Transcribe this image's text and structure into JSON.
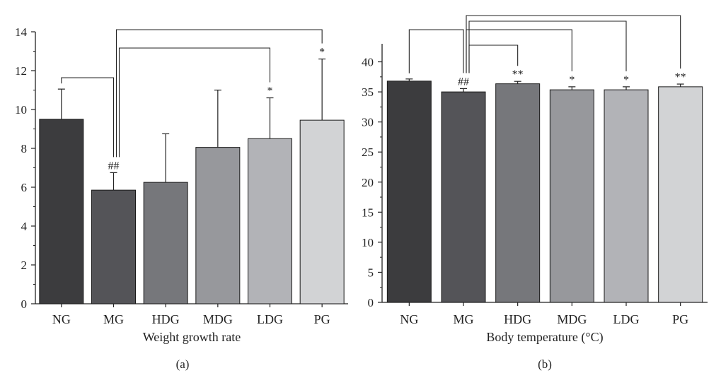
{
  "chart_data": [
    {
      "type": "bar",
      "panel_label": "(a)",
      "xlabel": "Weight growth rate",
      "categories": [
        "NG",
        "MG",
        "HDG",
        "MDG",
        "LDG",
        "PG"
      ],
      "values": [
        9.5,
        5.85,
        6.25,
        8.05,
        8.5,
        9.45
      ],
      "errors": [
        1.55,
        0.9,
        2.5,
        2.95,
        2.1,
        3.15
      ],
      "ylim": [
        0,
        14
      ],
      "yticks": [
        "0",
        "2",
        "4",
        "6",
        "8",
        "10",
        "12",
        "14"
      ],
      "significance": [
        "",
        "##",
        "",
        "",
        "*",
        "*"
      ],
      "comparisons": [
        {
          "from": "NG",
          "to": "MG"
        },
        {
          "from": "MG",
          "to": "LDG"
        },
        {
          "from": "MG",
          "to": "PG"
        }
      ],
      "colors": [
        "#3c3c3e",
        "#545458",
        "#76777b",
        "#97989c",
        "#b2b3b7",
        "#d2d3d5"
      ]
    },
    {
      "type": "bar",
      "panel_label": "(b)",
      "xlabel": "Body temperature (°C)",
      "categories": [
        "NG",
        "MG",
        "HDG",
        "MDG",
        "LDG",
        "PG"
      ],
      "values": [
        36.8,
        35.0,
        36.35,
        35.35,
        35.35,
        35.85
      ],
      "errors": [
        0.35,
        0.55,
        0.4,
        0.5,
        0.5,
        0.45
      ],
      "ylim": [
        0,
        43
      ],
      "yticks": [
        "0",
        "5",
        "10",
        "15",
        "20",
        "25",
        "30",
        "35",
        "40"
      ],
      "significance": [
        "",
        "##",
        "**",
        "*",
        "*",
        "**"
      ],
      "comparisons": [
        {
          "from": "NG",
          "to": "MG"
        },
        {
          "from": "MG",
          "to": "HDG"
        },
        {
          "from": "MG",
          "to": "MDG"
        },
        {
          "from": "MG",
          "to": "LDG"
        },
        {
          "from": "MG",
          "to": "PG"
        }
      ],
      "colors": [
        "#3c3c3e",
        "#545458",
        "#76777b",
        "#97989c",
        "#b2b3b7",
        "#d2d3d5"
      ]
    }
  ]
}
